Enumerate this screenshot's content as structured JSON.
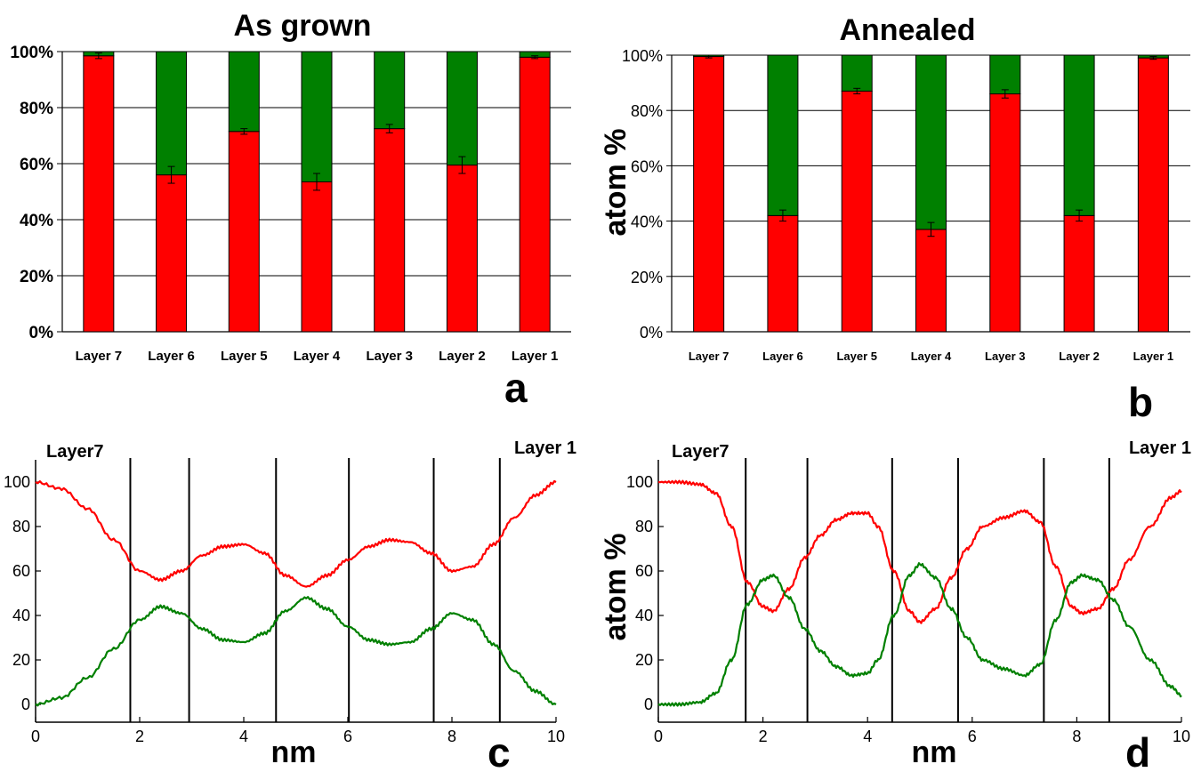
{
  "chart_data": [
    {
      "panel": "a",
      "type": "bar",
      "stacked": true,
      "title": "As grown",
      "ylabel": "",
      "xlabel": "",
      "ylim": [
        0,
        100
      ],
      "yticks": [
        "0%",
        "20%",
        "40%",
        "60%",
        "80%",
        "100%"
      ],
      "categories": [
        "Layer 7",
        "Layer 6",
        "Layer 5",
        "Layer 4",
        "Layer 3",
        "Layer 2",
        "Layer 1"
      ],
      "series": [
        {
          "color": "#ff0000",
          "values": [
            98.5,
            56,
            71.5,
            53.5,
            72.5,
            59.5,
            98
          ]
        },
        {
          "color": "#008000",
          "values": [
            1.5,
            44,
            28.5,
            46.5,
            27.5,
            40.5,
            2
          ]
        }
      ],
      "error_bars": [
        1,
        3,
        1,
        3,
        1.5,
        3,
        0.5
      ]
    },
    {
      "panel": "b",
      "type": "bar",
      "stacked": true,
      "title": "Annealed",
      "ylabel": "atom %",
      "xlabel": "",
      "ylim": [
        0,
        100
      ],
      "yticks": [
        "0%",
        "20%",
        "40%",
        "60%",
        "80%",
        "100%"
      ],
      "categories": [
        "Layer 7",
        "Layer 6",
        "Layer 5",
        "Layer 4",
        "Layer 3",
        "Layer 2",
        "Layer 1"
      ],
      "series": [
        {
          "color": "#ff0000",
          "values": [
            99.5,
            42,
            87,
            37,
            86,
            42,
            99
          ]
        },
        {
          "color": "#008000",
          "values": [
            0.5,
            58,
            13,
            63,
            14,
            58,
            1
          ]
        }
      ],
      "error_bars": [
        0.5,
        2,
        1,
        2.5,
        1.5,
        2,
        0.5
      ]
    },
    {
      "panel": "c",
      "type": "line",
      "title": "",
      "xlabel": "nm",
      "ylabel": "",
      "xlim": [
        0,
        10
      ],
      "ylim": [
        -8,
        110
      ],
      "xticks": [
        0,
        2,
        4,
        6,
        8,
        10
      ],
      "yticks": [
        0,
        20,
        40,
        60,
        80,
        100
      ],
      "left_label": "Layer7",
      "right_label": "Layer 1",
      "boundaries_nm": [
        1.82,
        2.95,
        4.62,
        6.02,
        7.65,
        8.92
      ],
      "series": [
        {
          "color": "#ff0000",
          "x": [
            0,
            0.5,
            1.0,
            1.5,
            2.0,
            2.4,
            2.8,
            3.2,
            3.6,
            4.0,
            4.4,
            4.8,
            5.2,
            5.6,
            6.0,
            6.4,
            6.8,
            7.2,
            7.6,
            8.0,
            8.4,
            8.8,
            9.2,
            9.6,
            10.0
          ],
          "y": [
            100,
            97,
            88,
            74,
            60,
            56,
            60,
            67,
            71,
            72,
            68,
            58,
            53,
            58,
            65,
            71,
            74,
            73,
            68,
            60,
            62,
            72,
            84,
            94,
            100
          ]
        },
        {
          "color": "#008000",
          "x": [
            0,
            0.5,
            1.0,
            1.5,
            2.0,
            2.4,
            2.8,
            3.2,
            3.6,
            4.0,
            4.4,
            4.8,
            5.2,
            5.6,
            6.0,
            6.4,
            6.8,
            7.2,
            7.6,
            8.0,
            8.4,
            8.8,
            9.2,
            9.6,
            10.0
          ],
          "y": [
            0,
            3,
            12,
            25,
            38,
            44,
            41,
            34,
            29,
            28,
            32,
            42,
            48,
            43,
            35,
            29,
            27,
            28,
            34,
            41,
            38,
            27,
            15,
            6,
            0
          ]
        }
      ]
    },
    {
      "panel": "d",
      "type": "line",
      "title": "",
      "xlabel": "nm",
      "ylabel": "atom %",
      "xlim": [
        0,
        10
      ],
      "ylim": [
        -8,
        110
      ],
      "xticks": [
        0,
        2,
        4,
        6,
        8,
        10
      ],
      "yticks": [
        0,
        20,
        40,
        60,
        80,
        100
      ],
      "left_label": "Layer7",
      "right_label": "Layer 1",
      "boundaries_nm": [
        1.67,
        2.85,
        4.47,
        5.73,
        7.37,
        8.62
      ],
      "series": [
        {
          "color": "#ff0000",
          "x": [
            0,
            0.4,
            0.8,
            1.1,
            1.4,
            1.7,
            2.0,
            2.2,
            2.5,
            2.8,
            3.1,
            3.4,
            3.7,
            4.0,
            4.2,
            4.5,
            4.8,
            5.0,
            5.3,
            5.6,
            5.9,
            6.2,
            6.6,
            7.0,
            7.3,
            7.6,
            7.9,
            8.1,
            8.4,
            8.7,
            9.0,
            9.4,
            9.8,
            10.0
          ],
          "y": [
            100,
            100,
            99,
            95,
            80,
            55,
            44,
            42,
            52,
            66,
            76,
            83,
            86,
            86,
            80,
            60,
            42,
            37,
            43,
            57,
            70,
            80,
            84,
            87,
            82,
            62,
            44,
            41,
            43,
            52,
            65,
            80,
            93,
            96
          ]
        },
        {
          "color": "#008000",
          "x": [
            0,
            0.4,
            0.8,
            1.1,
            1.4,
            1.7,
            2.0,
            2.2,
            2.5,
            2.8,
            3.1,
            3.4,
            3.7,
            4.0,
            4.2,
            4.5,
            4.8,
            5.0,
            5.3,
            5.6,
            5.9,
            6.2,
            6.6,
            7.0,
            7.3,
            7.6,
            7.9,
            8.1,
            8.4,
            8.7,
            9.0,
            9.4,
            9.8,
            10.0
          ],
          "y": [
            0,
            0,
            1,
            5,
            20,
            45,
            56,
            58,
            48,
            34,
            24,
            17,
            13,
            14,
            20,
            40,
            58,
            63,
            57,
            43,
            30,
            20,
            16,
            13,
            18,
            38,
            55,
            58,
            56,
            47,
            35,
            20,
            8,
            4
          ]
        }
      ]
    }
  ]
}
